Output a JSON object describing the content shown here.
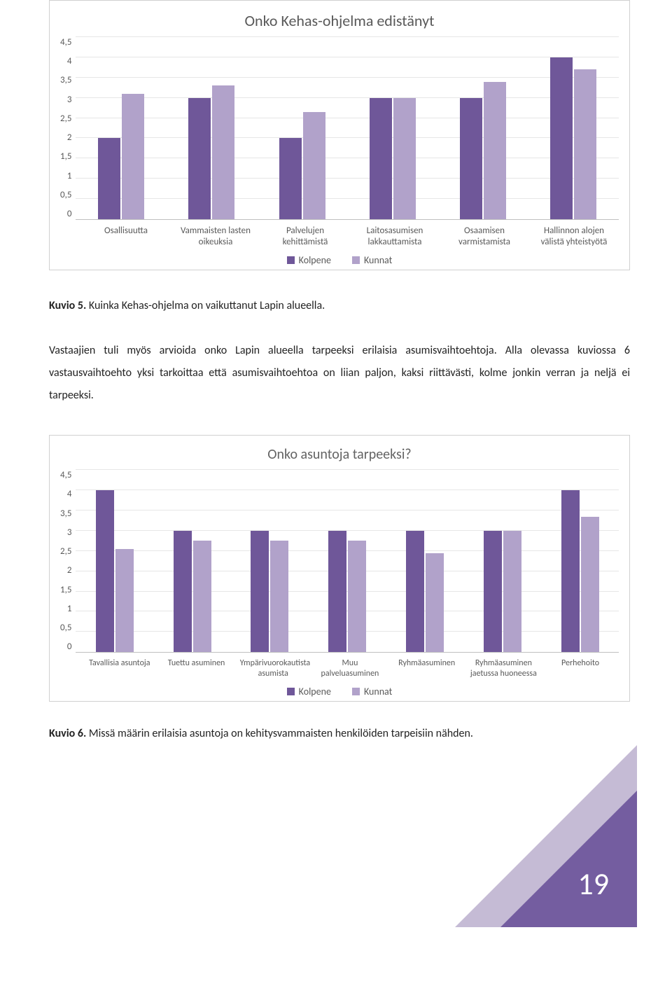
{
  "colors": {
    "series1": "#6f5799",
    "series2": "#b1a2ca",
    "grid": "#e6e6e6",
    "axis": "#bfbfbf",
    "title": "#595959",
    "text": "#595959"
  },
  "chart1": {
    "title": "Onko Kehas-ohjelma edistänyt",
    "y_max": 4.5,
    "y_step": 0.5,
    "categories": [
      "Osallisuutta",
      "Vammaisten lasten oikeuksia",
      "Palvelujen kehittämistä",
      "Laitosasumisen lakkauttamista",
      "Osaamisen varmistamista",
      "Hallinnon alojen välistä yhteistyötä"
    ],
    "series": [
      {
        "name": "Kolpene",
        "values": [
          2.0,
          3.0,
          2.0,
          3.0,
          3.0,
          4.0
        ]
      },
      {
        "name": "Kunnat",
        "values": [
          3.1,
          3.3,
          2.65,
          3.0,
          3.4,
          3.7
        ]
      }
    ]
  },
  "text": {
    "caption1_bold": "Kuvio 5.",
    "caption1_rest": " Kuinka Kehas-ohjelma on vaikuttanut Lapin alueella.",
    "para": "Vastaajien tuli myös arvioida onko Lapin alueella tarpeeksi erilaisia asumisvaihtoehtoja. Alla olevassa kuviossa 6 vastausvaihtoehto yksi tarkoittaa että asumisvaihtoehtoa on liian paljon, kaksi riittävästi, kolme jonkin verran ja neljä ei tarpeeksi.",
    "caption2_bold": "Kuvio 6.",
    "caption2_rest": " Missä määrin erilaisia asuntoja on kehitysvammaisten henkilöiden tarpeisiin nähden."
  },
  "chart2": {
    "title": "Onko asuntoja tarpeeksi?",
    "y_max": 4.5,
    "y_step": 0.5,
    "categories": [
      "Tavallisia asuntoja",
      "Tuettu asuminen",
      "Ympärivuorokautista asumista",
      "Muu palveluasuminen",
      "Ryhmäasuminen",
      "Ryhmäasuminen jaetussa huoneessa",
      "Perhehoito"
    ],
    "series": [
      {
        "name": "Kolpene",
        "values": [
          4.0,
          3.0,
          3.0,
          3.0,
          3.0,
          3.0,
          4.0
        ]
      },
      {
        "name": "Kunnat",
        "values": [
          2.55,
          2.75,
          2.75,
          2.75,
          2.45,
          3.0,
          3.35
        ]
      }
    ]
  },
  "page_number": "19"
}
